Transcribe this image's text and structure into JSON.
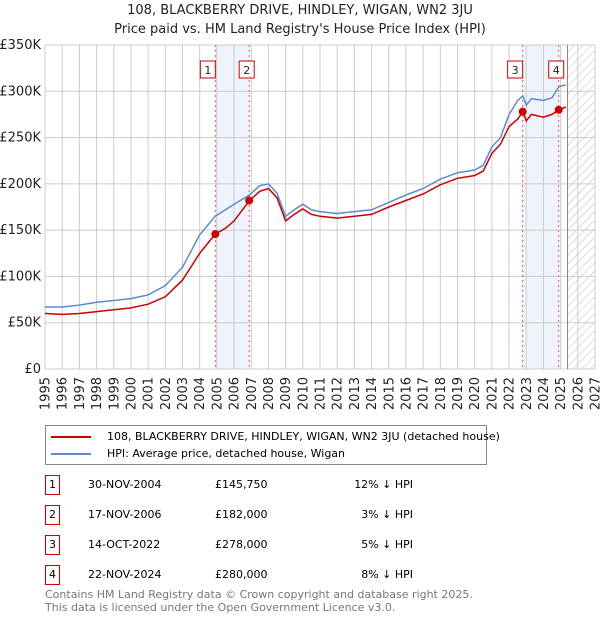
{
  "chart_data": {
    "type": "line",
    "title": "108, BLACKBERRY DRIVE, HINDLEY, WIGAN, WN2 3JU",
    "subtitle": "Price paid vs. HM Land Registry's House Price Index (HPI)",
    "xlim": [
      1995,
      2027
    ],
    "ylim": [
      0,
      350000
    ],
    "yticks": [
      "£0",
      "£50K",
      "£100K",
      "£150K",
      "£200K",
      "£250K",
      "£300K",
      "£350K"
    ],
    "xticks": [
      "1995",
      "1996",
      "1997",
      "1998",
      "1999",
      "2000",
      "2001",
      "2002",
      "2003",
      "2004",
      "2005",
      "2006",
      "2007",
      "2008",
      "2009",
      "2010",
      "2011",
      "2012",
      "2013",
      "2014",
      "2015",
      "2016",
      "2017",
      "2018",
      "2019",
      "2020",
      "2021",
      "2022",
      "2023",
      "2024",
      "2025",
      "2026",
      "2027"
    ],
    "series": [
      {
        "name": "108, BLACKBERRY DRIVE, HINDLEY, WIGAN, WN2 3JU (detached house)",
        "color": "#cc0000",
        "x": [
          1995,
          1996,
          1997,
          1998,
          1999,
          2000,
          2001,
          2002,
          2003,
          2004,
          2004.9,
          2005.5,
          2006,
          2006.9,
          2007.5,
          2008,
          2008.5,
          2009,
          2009.5,
          2010,
          2010.5,
          2011,
          2012,
          2013,
          2014,
          2015,
          2016,
          2017,
          2018,
          2019,
          2020,
          2020.5,
          2021,
          2021.5,
          2022,
          2022.5,
          2022.8,
          2023,
          2023.3,
          2024,
          2024.5,
          2024.9,
          2025.3
        ],
        "y": [
          60000,
          59000,
          60000,
          62000,
          64000,
          66000,
          70000,
          78000,
          96000,
          125000,
          145750,
          152000,
          160000,
          182000,
          192000,
          195000,
          185000,
          160000,
          167000,
          173000,
          167000,
          165000,
          163000,
          165000,
          167000,
          175000,
          182000,
          189000,
          199000,
          206000,
          209000,
          214000,
          233000,
          243000,
          262000,
          270000,
          278000,
          268000,
          275000,
          272000,
          275000,
          280000,
          283000
        ]
      },
      {
        "name": "HPI: Average price, detached house, Wigan",
        "color": "#5b8bd0",
        "x": [
          1995,
          1996,
          1997,
          1998,
          1999,
          2000,
          2001,
          2002,
          2003,
          2004,
          2004.9,
          2005.5,
          2006,
          2006.9,
          2007.5,
          2008,
          2008.5,
          2009,
          2009.5,
          2010,
          2010.5,
          2011,
          2012,
          2013,
          2014,
          2015,
          2016,
          2017,
          2018,
          2019,
          2020,
          2020.5,
          2021,
          2021.5,
          2022,
          2022.5,
          2022.8,
          2023,
          2023.3,
          2024,
          2024.5,
          2024.9,
          2025.3
        ],
        "y": [
          67000,
          67000,
          69000,
          72000,
          74000,
          76000,
          80000,
          90000,
          110000,
          145000,
          165000,
          172000,
          178000,
          188000,
          198000,
          200000,
          190000,
          165000,
          172000,
          178000,
          172000,
          170000,
          168000,
          170000,
          172000,
          180000,
          188000,
          195000,
          205000,
          212000,
          215000,
          220000,
          240000,
          250000,
          275000,
          290000,
          295000,
          285000,
          292000,
          290000,
          293000,
          305000,
          307000
        ]
      }
    ],
    "sales": [
      {
        "id": "1",
        "x": 2004.91,
        "y": 145750,
        "date": "30-NOV-2004",
        "price": "£145,750",
        "hpi": "12% ↓ HPI"
      },
      {
        "id": "2",
        "x": 2006.88,
        "y": 182000,
        "date": "17-NOV-2006",
        "price": "£182,000",
        "hpi": "3% ↓ HPI"
      },
      {
        "id": "3",
        "x": 2022.79,
        "y": 278000,
        "date": "14-OCT-2022",
        "price": "£278,000",
        "hpi": "5% ↓ HPI"
      },
      {
        "id": "4",
        "x": 2024.89,
        "y": 280000,
        "date": "22-NOV-2024",
        "price": "£280,000",
        "hpi": "8% ↓ HPI"
      }
    ],
    "forecast_start": 2025.4
  },
  "footer": [
    "Contains HM Land Registry data © Crown copyright and database right 2025.",
    "This data is licensed under the Open Government Licence v3.0."
  ]
}
